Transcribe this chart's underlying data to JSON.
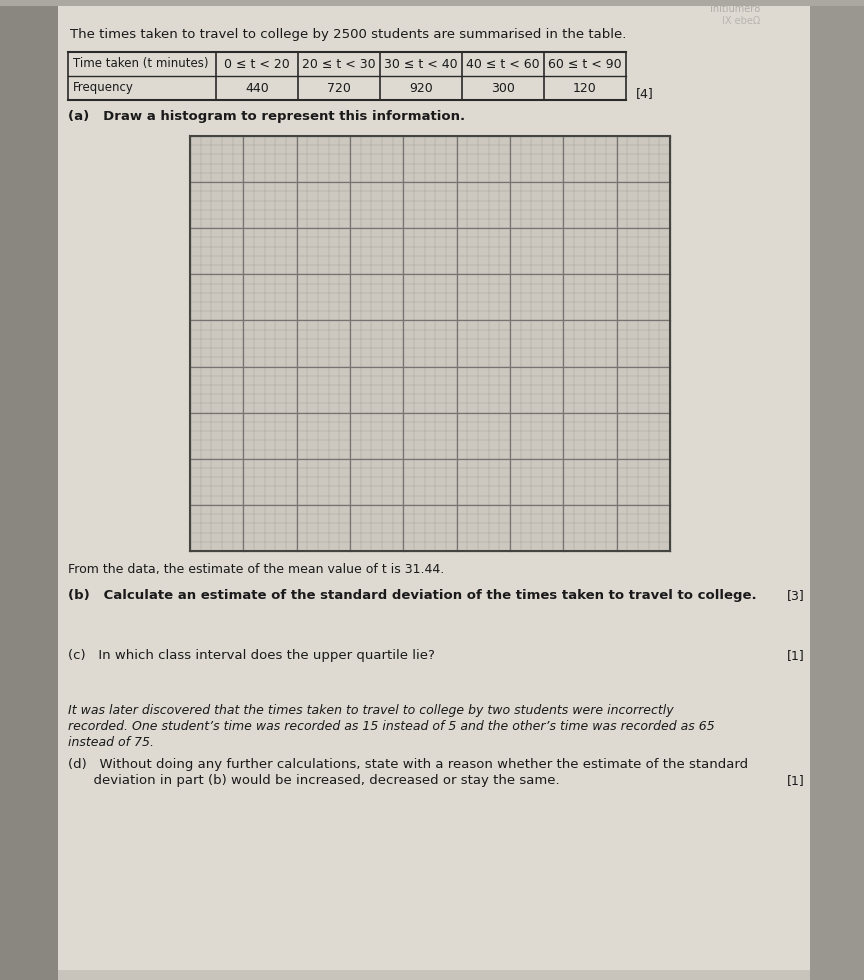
{
  "title_text": "The times taken to travel to college by 2500 students are summarised in the table.",
  "table_headers": [
    "Time taken (t minutes)",
    "0 ≤ t < 20",
    "20 ≤ t < 30",
    "30 ≤ t < 40",
    "40 ≤ t < 60",
    "60 ≤ t < 90"
  ],
  "table_row_label": "Frequency",
  "table_values": [
    "440",
    "720",
    "920",
    "300",
    "120"
  ],
  "part_a_label": "(a)   Draw a histogram to represent this information.",
  "part_a_mark": "[4]",
  "mean_text": "From the data, the estimate of the mean value of t is 31.44.",
  "part_b_label": "(b)   Calculate an estimate of the standard deviation of the times taken to travel to college.",
  "part_b_mark": "[3]",
  "part_c_label": "(c)   In which class interval does the upper quartile lie?",
  "part_c_mark": "[1]",
  "intro_line1": "It was later discovered that the times taken to travel to college by two students were incorrectly",
  "intro_line2": "recorded. One student’s time was recorded as 15 instead of 5 and the other’s time was recorded as 65",
  "intro_line3": "instead of 75.",
  "part_d_line1": "(d)   Without doing any further calculations, state with a reason whether the estimate of the standard",
  "part_d_line2": "      deviation in part (b) would be increased, decreased or stay the same.",
  "part_d_mark": "[1]",
  "bg_color": "#c8c4bc",
  "paper_color": "#dedad2",
  "grid_bg": "#ccc8c0",
  "grid_minor_color": "#999590",
  "grid_major_color": "#777370",
  "text_color": "#1a1a1a",
  "table_border_color": "#2a2a2a"
}
